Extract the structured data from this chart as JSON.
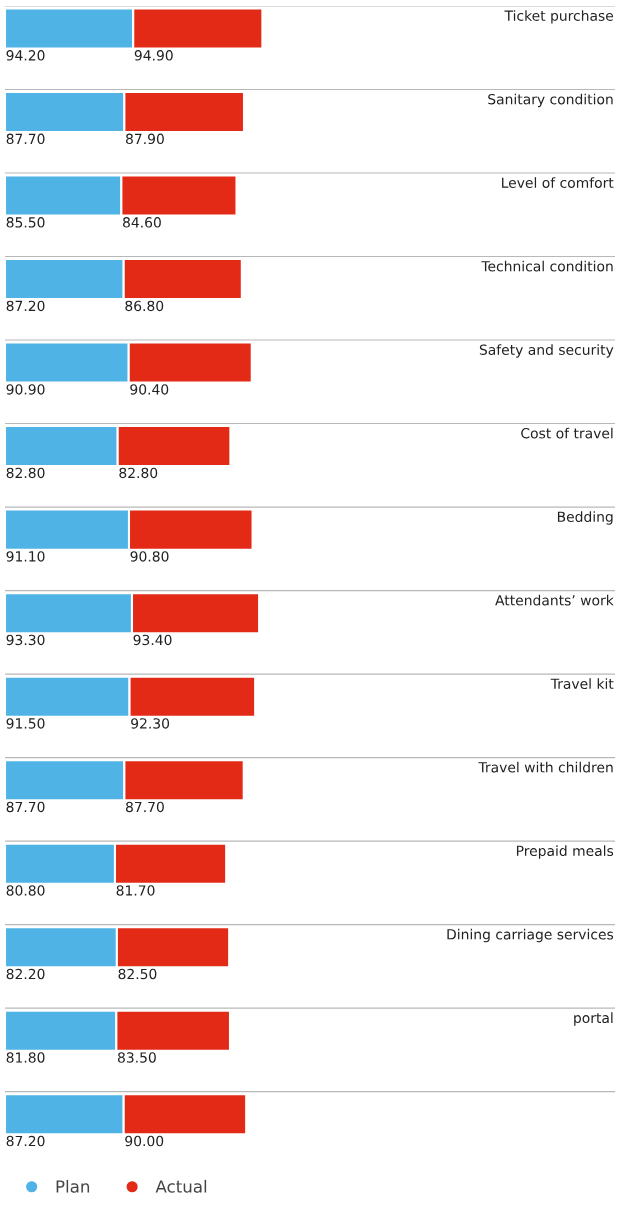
{
  "chart_data": {
    "type": "bar",
    "orientation": "horizontal",
    "stacked": true,
    "grid": "y",
    "legend": "bottom left",
    "marker": "circle",
    "categories": [
      "Ticket purchase",
      "Sanitary condition",
      "Level of comfort",
      "Technical condition",
      "Safety and security",
      "Cost of travel",
      "Bedding",
      "Attendants’ work",
      "Travel kit",
      "Travel with children",
      "Prepaid meals",
      "Dining carriage services",
      "portal",
      null
    ],
    "series": [
      {
        "name": "Plan",
        "color": "#4fb3e6",
        "values": [
          94.2,
          87.7,
          85.5,
          87.2,
          90.9,
          82.8,
          91.1,
          93.3,
          91.5,
          87.7,
          80.8,
          82.2,
          81.8,
          87.2
        ],
        "value_labels": [
          "94.20",
          "87.70",
          "85.50",
          "87.20",
          "90.90",
          "82.80",
          "91.10",
          "93.30",
          "91.50",
          "87.70",
          "80.80",
          "82.20",
          "81.80",
          "87.20"
        ]
      },
      {
        "name": "Actual",
        "color": "#e32a17",
        "values": [
          94.9,
          87.9,
          84.6,
          86.8,
          90.4,
          82.8,
          90.8,
          93.4,
          92.3,
          87.7,
          81.7,
          82.5,
          83.5,
          90.0
        ],
        "value_labels": [
          "94.90",
          "87.90",
          "84.60",
          "86.80",
          "90.40",
          "82.80",
          "90.80",
          "93.40",
          "92.30",
          "87.70",
          "81.70",
          "82.50",
          "83.50",
          "90.00"
        ]
      }
    ]
  }
}
